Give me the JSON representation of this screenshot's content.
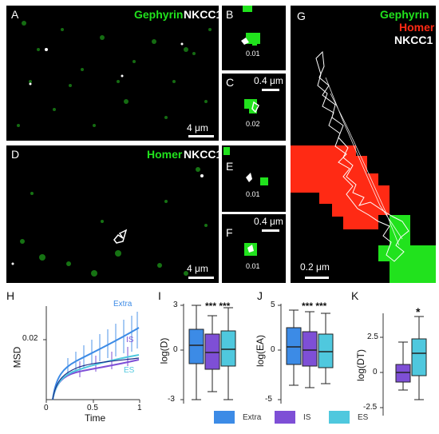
{
  "panels": {
    "A": {
      "label": "A",
      "ch1": "Gephyrin",
      "ch2": "NKCC1",
      "scale": "4 μm"
    },
    "B": {
      "label": "B",
      "value": "0.01"
    },
    "C": {
      "label": "C",
      "value": "0.02",
      "scale": "0.4 μm"
    },
    "D": {
      "label": "D",
      "ch1": "Homer",
      "ch2": "NKCC1",
      "scale": "4 μm"
    },
    "E": {
      "label": "E",
      "value": "0.01"
    },
    "F": {
      "label": "F",
      "value": "0.01",
      "scale": "0.4 μm"
    },
    "G": {
      "label": "G",
      "ch1": "Gephyrin",
      "ch2": "Homer",
      "ch3": "NKCC1",
      "scale": "0.2 μm"
    }
  },
  "colors": {
    "gephyrin": "#21e21d",
    "homer": "#ff2a14",
    "nkcc1": "#ffffff",
    "extra": "#3c8be6",
    "is": "#7e4fd6",
    "es": "#4fc8de"
  },
  "H": {
    "label": "H",
    "ylabel": "MSD",
    "xlabel": "Time",
    "ytick": "0.02",
    "xticks": [
      "0",
      "0.5",
      "1"
    ],
    "series": [
      "Extra",
      "IS",
      "ES"
    ]
  },
  "I": {
    "label": "I",
    "ylabel": "log(D)",
    "yticks": [
      "3",
      "0",
      "-3"
    ],
    "stars": "*** ***"
  },
  "J": {
    "label": "J",
    "ylabel": "log(EA)",
    "yticks": [
      "5",
      "0",
      "-5"
    ],
    "stars": "*** ***"
  },
  "K": {
    "label": "K",
    "ylabel": "log(DT)",
    "yticks": [
      "2.5",
      "0",
      "-2.5"
    ],
    "stars": "*"
  },
  "legend": [
    "Extra",
    "IS",
    "ES"
  ]
}
